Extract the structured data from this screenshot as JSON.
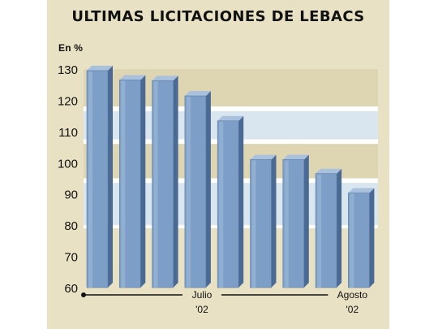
{
  "chart_data": {
    "type": "bar",
    "title": "ULTIMAS LICITACIONES DE LEBACS",
    "unit_label": "En %",
    "categories": [
      "",
      "",
      "",
      "",
      "",
      "",
      "",
      "",
      ""
    ],
    "values": [
      129.5,
      126.5,
      126.3,
      121.4,
      113.4,
      101.0,
      101.0,
      96.5,
      90.3
    ],
    "ylim": [
      60,
      130
    ],
    "yticks": [
      60,
      70,
      80,
      90,
      100,
      110,
      120,
      130
    ],
    "x_annotations": [
      {
        "line1": "Julio",
        "line2": "'02",
        "bar_index": 3.2
      },
      {
        "line1": "Agosto",
        "line2": "'02",
        "bar_index": 7.8
      }
    ],
    "grid": "alternating horizontal bands",
    "colors": {
      "panel": "#e8e1c4",
      "band_beige": "#ded5b3",
      "band_blue": "#dae6ef",
      "band_white": "#ffffff",
      "bar_front": "#7d9fc7",
      "bar_side": "#4a6a94",
      "bar_top": "#a9c1dc"
    }
  }
}
